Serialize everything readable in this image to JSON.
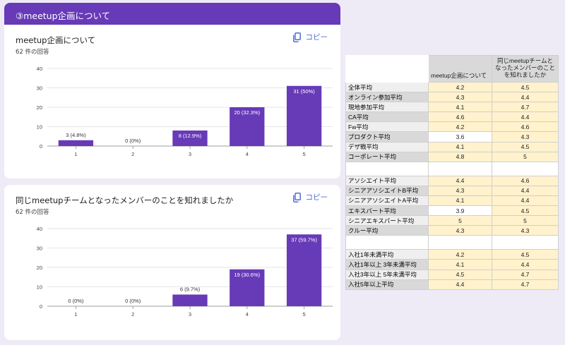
{
  "section": {
    "title": "③meetup企画について"
  },
  "copy_label": "コピー",
  "questions": [
    {
      "title": "meetup企画について",
      "responses": "62 件の回答",
      "chart_data": {
        "type": "bar",
        "categories": [
          "1",
          "2",
          "3",
          "4",
          "5"
        ],
        "values": [
          3,
          0,
          8,
          20,
          31
        ],
        "data_labels": [
          "3 (4.8%)",
          "0 (0%)",
          "8 (12.9%)",
          "20 (32.3%)",
          "31 (50%)"
        ],
        "yticks": [
          0,
          10,
          20,
          30,
          40
        ],
        "ylim": [
          0,
          40
        ],
        "color": "#673ab7"
      }
    },
    {
      "title": "同じmeetupチームとなったメンバーのことを知れましたか",
      "responses": "62 件の回答",
      "chart_data": {
        "type": "bar",
        "categories": [
          "1",
          "2",
          "3",
          "4",
          "5"
        ],
        "values": [
          0,
          0,
          6,
          19,
          37
        ],
        "data_labels": [
          "0 (0%)",
          "0 (0%)",
          "6 (9.7%)",
          "19 (30.6%)",
          "37 (59.7%)"
        ],
        "yticks": [
          0,
          10,
          20,
          30,
          40
        ],
        "ylim": [
          0,
          40
        ],
        "color": "#673ab7"
      }
    }
  ],
  "table": {
    "headers": [
      "meetup企画について",
      "同じmeetupチームとなったメンバーのことを知れましたか"
    ],
    "groups": [
      [
        {
          "label": "全体平均",
          "v1": "4.2",
          "v2": "4.5",
          "light": true
        },
        {
          "label": "オンライン参加平均",
          "v1": "4.3",
          "v2": "4.4"
        },
        {
          "label": "現地参加平均",
          "v1": "4.1",
          "v2": "4.7",
          "light": true
        },
        {
          "label": "CA平均",
          "v1": "4.6",
          "v2": "4.4"
        },
        {
          "label": "Fw平均",
          "v1": "4.2",
          "v2": "4.6",
          "light": true
        },
        {
          "label": "プロダクト平均",
          "v1": "3.6",
          "v2": "4.3",
          "white": true
        },
        {
          "label": "デザ戦平均",
          "v1": "4.1",
          "v2": "4.5",
          "light": true
        },
        {
          "label": "コーポレート平均",
          "v1": "4.8",
          "v2": "5"
        }
      ],
      [
        {
          "label": "アソシエイト平均",
          "v1": "4.4",
          "v2": "4.6",
          "light": true
        },
        {
          "label": "シニアアソシエイトB平均",
          "v1": "4.3",
          "v2": "4.4"
        },
        {
          "label": "シニアアソシエイトA平均",
          "v1": "4.1",
          "v2": "4.4",
          "light": true
        },
        {
          "label": "エキスパート平均",
          "v1": "3.9",
          "v2": "4.5",
          "white": true
        },
        {
          "label": "シニアエキスパート平均",
          "v1": "5",
          "v2": "5",
          "light": true
        },
        {
          "label": "クルー平均",
          "v1": "4.3",
          "v2": "4.3"
        }
      ],
      [
        {
          "label": "入社1年未満平均",
          "v1": "4.2",
          "v2": "4.5",
          "light": true
        },
        {
          "label": "入社1年以上 3年未満平均",
          "v1": "4.1",
          "v2": "4.4"
        },
        {
          "label": "入社3年以上 5年未満平均",
          "v1": "4.5",
          "v2": "4.7",
          "light": true
        },
        {
          "label": "入社5年以上平均",
          "v1": "4.4",
          "v2": "4.7"
        }
      ]
    ]
  }
}
